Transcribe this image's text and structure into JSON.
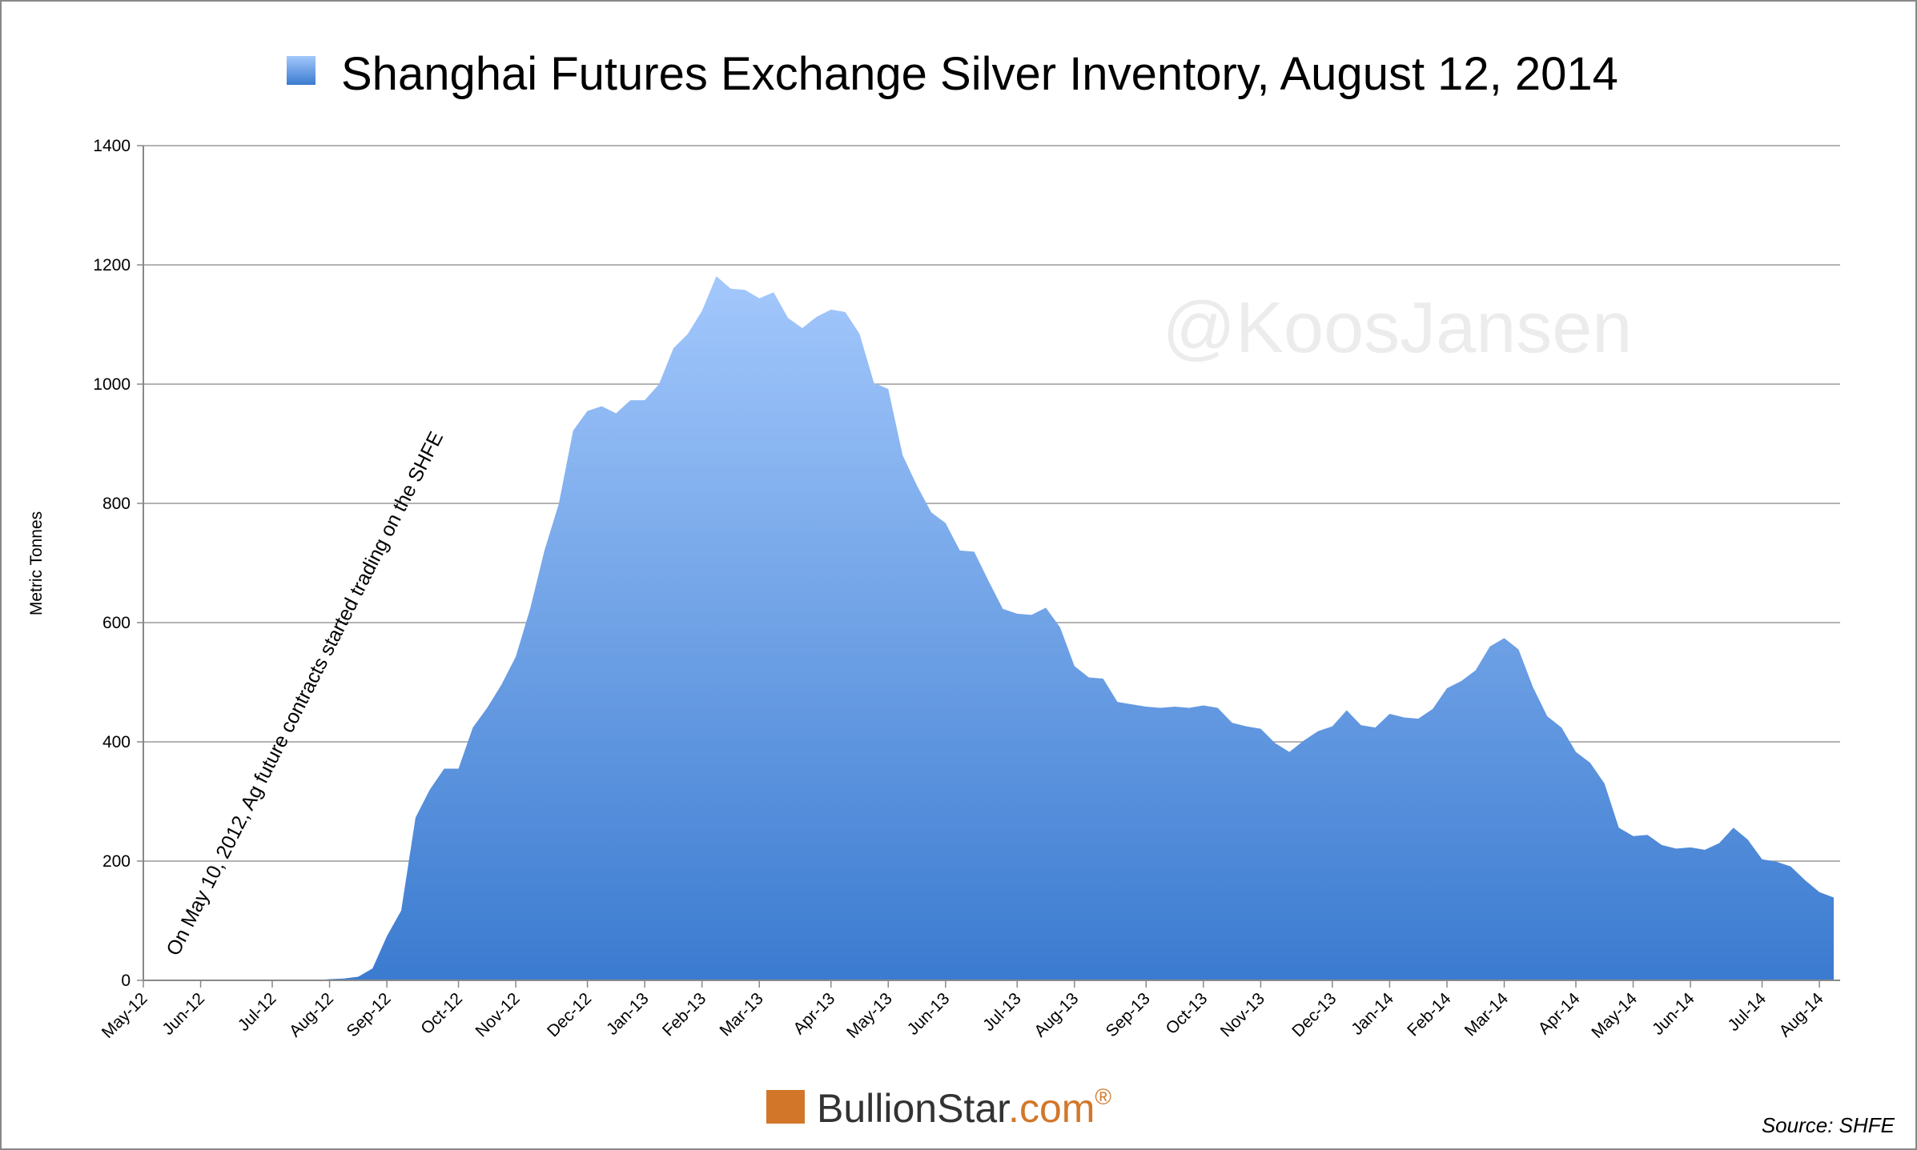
{
  "chart_data": {
    "type": "area",
    "y_label": "Metric Tonnes",
    "annotation": "On May 10, 2012, Ag future contracts started trading on the SHFE",
    "watermark": "@KoosJansen",
    "logo": {
      "name": "BullionStar",
      "domain": ".com",
      "mark": "®"
    },
    "source": "Source: SHFE",
    "categories": [
      "May-12",
      null,
      null,
      null,
      "Jun-12",
      null,
      null,
      null,
      null,
      "Jul-12",
      null,
      null,
      null,
      "Aug-12",
      null,
      null,
      null,
      "Sep-12",
      null,
      null,
      null,
      null,
      "Oct-12",
      null,
      null,
      null,
      "Nov-12",
      null,
      null,
      null,
      null,
      "Dec-12",
      null,
      null,
      null,
      "Jan-13",
      null,
      null,
      null,
      "Feb-13",
      null,
      null,
      null,
      "Mar-13",
      null,
      null,
      null,
      null,
      "Apr-13",
      null,
      null,
      null,
      "May-13",
      null,
      null,
      null,
      "Jun-13",
      null,
      null,
      null,
      null,
      "Jul-13",
      null,
      null,
      null,
      "Aug-13",
      null,
      null,
      null,
      null,
      "Sep-13",
      null,
      null,
      null,
      "Oct-13",
      null,
      null,
      null,
      "Nov-13",
      null,
      null,
      null,
      null,
      "Dec-13",
      null,
      null,
      null,
      "Jan-14",
      null,
      null,
      null,
      "Feb-14",
      null,
      null,
      null,
      "Mar-14",
      null,
      null,
      null,
      null,
      "Apr-14",
      null,
      null,
      null,
      "May-14",
      null,
      null,
      null,
      "Jun-14",
      null,
      null,
      null,
      null,
      "Jul-14",
      null,
      null,
      null,
      "Aug-14",
      null
    ],
    "series": [
      {
        "name": "Shanghai Futures Exchange Silver Inventory, August 12, 2014",
        "color": "#5b93e0",
        "values": [
          0,
          0,
          0,
          0,
          0,
          0,
          0,
          0,
          0,
          0,
          0,
          0,
          0,
          2,
          3,
          6,
          20,
          74,
          117,
          273,
          320,
          355,
          355,
          424,
          457,
          496,
          543,
          623,
          721,
          799,
          922,
          955,
          963,
          951,
          973,
          973,
          1000,
          1060,
          1084,
          1123,
          1181,
          1160,
          1158,
          1144,
          1154,
          1111,
          1094,
          1113,
          1125,
          1121,
          1084,
          1002,
          992,
          881,
          830,
          785,
          767,
          721,
          719,
          670,
          623,
          615,
          613,
          625,
          592,
          527,
          508,
          506,
          467,
          463,
          459,
          457,
          459,
          457,
          461,
          457,
          432,
          426,
          422,
          398,
          383,
          402,
          418,
          426,
          453,
          428,
          424,
          447,
          441,
          439,
          455,
          490,
          502,
          520,
          560,
          574,
          555,
          492,
          443,
          424,
          383,
          365,
          330,
          256,
          242,
          244,
          227,
          221,
          223,
          219,
          230,
          256,
          236,
          203,
          199,
          191,
          168,
          148,
          139
        ]
      }
    ],
    "ylim": [
      0,
      1400
    ],
    "yticks": [
      0,
      200,
      400,
      600,
      800,
      1000,
      1200,
      1400
    ],
    "grid": true
  }
}
